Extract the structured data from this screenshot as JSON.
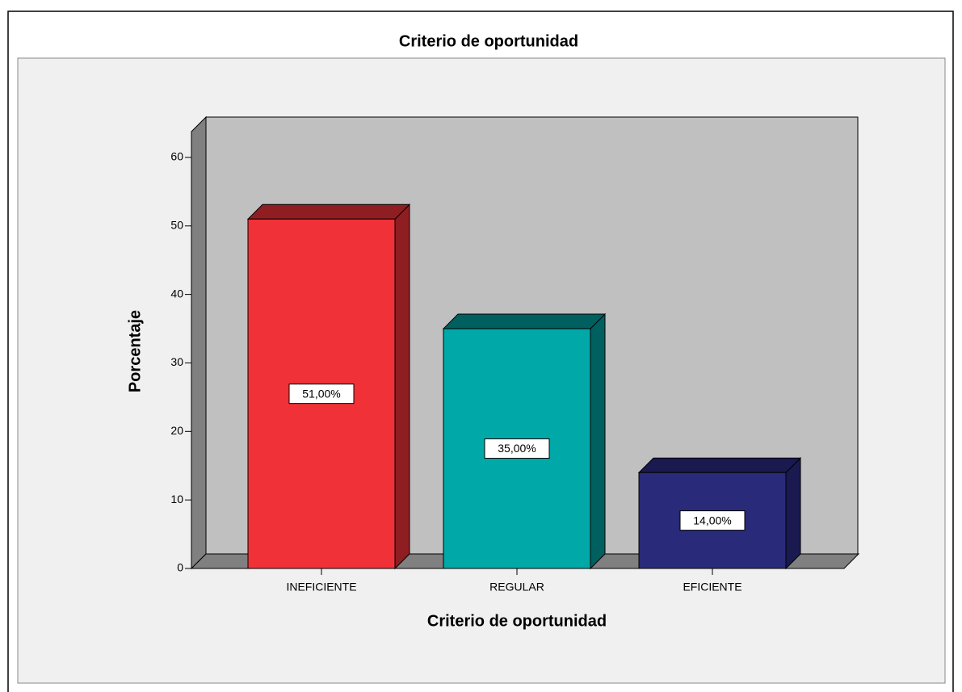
{
  "chart_data": {
    "type": "bar3d",
    "title": "Criterio de oportunidad",
    "x_label": "Criterio de oportunidad",
    "y_label": "Porcentaje",
    "categories": [
      "INEFICIENTE",
      "REGULAR",
      "EFICIENTE"
    ],
    "values": [
      51,
      35,
      14
    ],
    "value_labels": [
      "51,00%",
      "35,00%",
      "14,00%"
    ],
    "colors": [
      "#f03238",
      "#00a8a8",
      "#2a2a7a"
    ],
    "top_colors": [
      "#8e1e22",
      "#006060",
      "#1a1a50"
    ],
    "ylim": [
      0,
      64
    ],
    "yticks": [
      0,
      10,
      20,
      30,
      40,
      50,
      60
    ]
  }
}
